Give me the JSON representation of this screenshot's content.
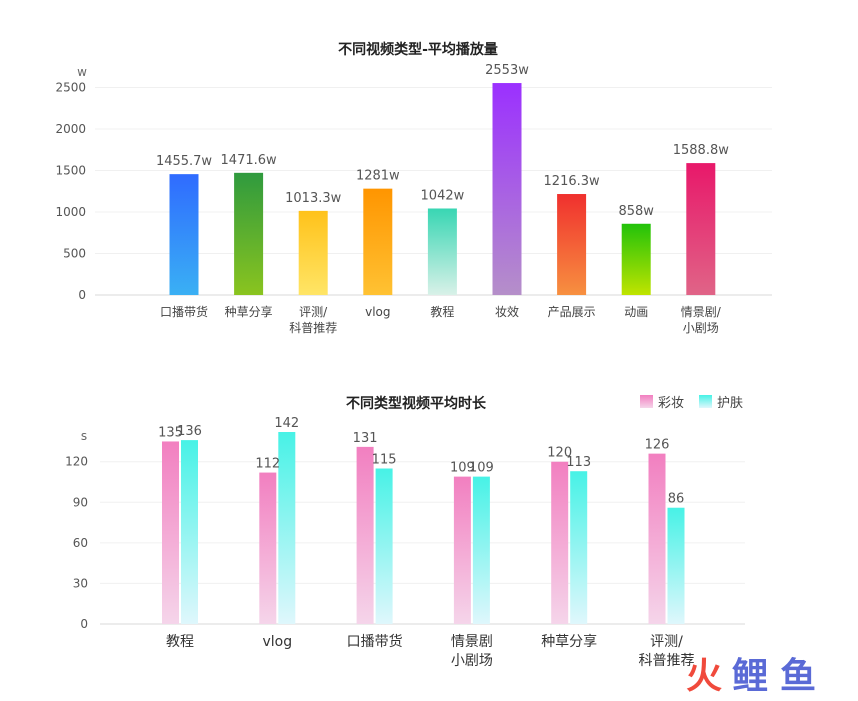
{
  "chart_data": [
    {
      "type": "bar",
      "title": "不同视频类型-平均播放量",
      "y_unit": "w",
      "yticks": [
        "0",
        "500",
        "1000",
        "1500",
        "2000",
        "2500"
      ],
      "ylim": [
        0,
        2650
      ],
      "grid": true,
      "categories": [
        "口播带货",
        "种草分享",
        "评测/\n科普推荐",
        "vlog",
        "教程",
        "妆效",
        "产品展示",
        "动画",
        "情景剧/\n小剧场"
      ],
      "values": [
        1455.7,
        1471.6,
        1013.3,
        1281,
        1042,
        2553,
        1216.3,
        858,
        1588.8
      ],
      "data_labels": [
        "1455.7w",
        "1471.6w",
        "1013.3w",
        "1281w",
        "1042w",
        "2553w",
        "1216.3w",
        "858w",
        "1588.8w"
      ],
      "colors": [
        [
          "#2f6bff",
          "#3ab0f4"
        ],
        [
          "#2f9a3e",
          "#8ac41f"
        ],
        [
          "#ffc21a",
          "#ffe566"
        ],
        [
          "#ff9500",
          "#ffc233"
        ],
        [
          "#38d6b3",
          "#d9f1e8"
        ],
        [
          "#9b30ff",
          "#b58fc9"
        ],
        [
          "#f0302e",
          "#f79040"
        ],
        [
          "#22c20a",
          "#c0e400"
        ],
        [
          "#e8186a",
          "#e06487"
        ]
      ]
    },
    {
      "type": "bar",
      "title": "不同类型视频平均时长",
      "y_unit": "s",
      "yticks": [
        "0",
        "30",
        "60",
        "90",
        "120"
      ],
      "ylim": [
        0,
        142
      ],
      "grid": true,
      "legend_position": "top-right",
      "categories": [
        "教程",
        "vlog",
        "口播带货",
        "情景剧\n小剧场",
        "种草分享",
        "评测/\n科普推荐"
      ],
      "series": [
        {
          "name": "彩妆",
          "values": [
            135,
            112,
            131,
            109,
            120,
            126
          ],
          "colors": [
            "#f27fc0",
            "#f5d5ea"
          ]
        },
        {
          "name": "护肤",
          "values": [
            136,
            142,
            115,
            109,
            113,
            86
          ],
          "colors": [
            "#47f2e6",
            "#dff7fc"
          ]
        }
      ]
    }
  ],
  "watermark": {
    "chars": [
      "火",
      "鲤",
      "鱼"
    ],
    "colors": [
      "#f04a3c",
      "#5a6ad6",
      "#5a6ad6"
    ]
  }
}
